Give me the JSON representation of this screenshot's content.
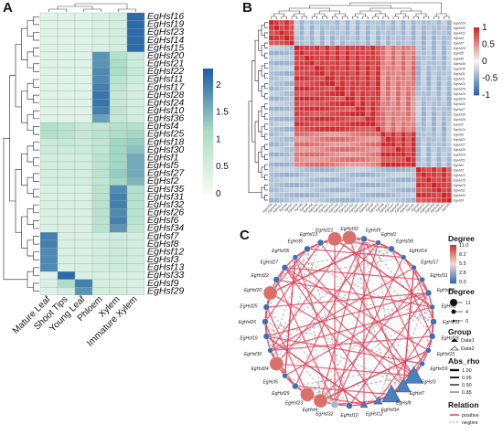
{
  "panels": {
    "a": "A",
    "b": "B",
    "c": "C"
  },
  "colors": {
    "low": "#f4fbf4",
    "mid": "#a9dcc6",
    "high": "#1f5fa8",
    "corr_neg": "#2c63a8",
    "corr_mid": "#f7f7f2",
    "corr_pos": "#cc2529",
    "positive": "#e23b54",
    "negative": "#9a9a9a"
  },
  "chart_data": [
    {
      "type": "heatmap",
      "panel": "A",
      "columns": [
        "Mature Leaf",
        "Shoot Tips",
        "Young Leaf",
        "Phloem",
        "Xylem",
        "Immature Xylem"
      ],
      "rows": [
        "EgHsf16",
        "EgHsf19",
        "EgHsf23",
        "EgHsf14",
        "EgHsf15",
        "EgHsf20",
        "EgHsf21",
        "EgHsf22",
        "EgHsf11",
        "EgHsf17",
        "EgHsf28",
        "EgHsf24",
        "EgHsf10",
        "EgHsf36",
        "EgHsf4",
        "EgHsf25",
        "EgHsf18",
        "EgHsf30",
        "EgHsf1",
        "EgHsf5",
        "EgHsf27",
        "EgHsf2",
        "EgHsf35",
        "EgHsf31",
        "EgHsf32",
        "EgHsf26",
        "EgHsf6",
        "EgHsf34",
        "EgHsf7",
        "EgHsf8",
        "EgHsf12",
        "EgHsf3",
        "EgHsf13",
        "EgHsf33",
        "EgHsf9",
        "EgHsf29"
      ],
      "values": [
        [
          0.3,
          0.3,
          0.3,
          0.4,
          0.5,
          2.2
        ],
        [
          0.3,
          0.3,
          0.3,
          0.4,
          0.5,
          2.2
        ],
        [
          0.3,
          0.3,
          0.3,
          0.4,
          0.5,
          2.2
        ],
        [
          0.3,
          0.3,
          0.3,
          0.4,
          0.5,
          2.2
        ],
        [
          0.3,
          0.3,
          0.3,
          0.4,
          0.5,
          2.2
        ],
        [
          0.3,
          0.3,
          0.3,
          1.8,
          1.0,
          0.6
        ],
        [
          0.3,
          0.3,
          0.3,
          1.8,
          1.1,
          0.6
        ],
        [
          0.3,
          0.3,
          0.3,
          1.9,
          1.1,
          0.7
        ],
        [
          0.3,
          0.3,
          0.3,
          1.9,
          0.9,
          0.6
        ],
        [
          0.3,
          0.3,
          0.3,
          2.0,
          0.8,
          0.5
        ],
        [
          0.3,
          0.3,
          0.3,
          2.1,
          0.7,
          0.5
        ],
        [
          0.3,
          0.3,
          0.3,
          2.1,
          0.7,
          0.5
        ],
        [
          0.3,
          0.3,
          0.3,
          2.0,
          0.8,
          0.5
        ],
        [
          0.3,
          0.3,
          0.3,
          1.7,
          0.7,
          0.5
        ],
        [
          1.0,
          0.9,
          0.7,
          0.8,
          1.0,
          1.0
        ],
        [
          1.0,
          0.9,
          0.7,
          0.9,
          1.1,
          1.2
        ],
        [
          0.6,
          0.7,
          0.6,
          0.8,
          1.2,
          1.3
        ],
        [
          0.6,
          0.6,
          0.6,
          0.8,
          1.2,
          1.4
        ],
        [
          0.5,
          0.5,
          0.5,
          0.9,
          1.2,
          1.6
        ],
        [
          0.5,
          0.5,
          0.5,
          0.9,
          1.2,
          1.6
        ],
        [
          0.5,
          0.5,
          0.5,
          0.9,
          1.3,
          1.6
        ],
        [
          0.5,
          0.5,
          0.5,
          0.8,
          1.2,
          1.5
        ],
        [
          0.4,
          0.4,
          0.4,
          0.9,
          1.9,
          1.0
        ],
        [
          0.4,
          0.4,
          0.4,
          0.9,
          2.0,
          1.0
        ],
        [
          0.4,
          0.4,
          0.4,
          0.9,
          2.0,
          0.9
        ],
        [
          0.4,
          0.4,
          0.4,
          0.9,
          1.9,
          0.9
        ],
        [
          0.4,
          0.4,
          0.4,
          0.9,
          2.0,
          0.9
        ],
        [
          0.4,
          0.4,
          0.4,
          0.9,
          1.8,
          0.8
        ],
        [
          2.0,
          0.4,
          0.4,
          0.5,
          0.6,
          0.5
        ],
        [
          2.0,
          0.4,
          0.4,
          0.5,
          0.6,
          0.5
        ],
        [
          1.9,
          0.4,
          0.4,
          0.5,
          0.6,
          0.5
        ],
        [
          1.9,
          0.4,
          0.4,
          0.5,
          0.6,
          0.5
        ],
        [
          1.9,
          0.4,
          0.4,
          0.5,
          0.6,
          0.5
        ],
        [
          0.3,
          2.2,
          0.4,
          0.4,
          0.4,
          0.4
        ],
        [
          0.4,
          1.1,
          2.0,
          0.5,
          0.5,
          0.4
        ],
        [
          0.3,
          0.5,
          1.8,
          0.5,
          0.5,
          0.4
        ]
      ],
      "color_range": [
        0,
        2.3
      ],
      "colorbar_ticks": [
        "2",
        "1.5",
        "1",
        "0.5",
        "0"
      ],
      "colorbar_tick_values": [
        2,
        1.5,
        1,
        0.5,
        0
      ]
    },
    {
      "type": "heatmap",
      "panel": "B",
      "kind": "correlation",
      "labels": [
        "EgHsf26",
        "EgHsf35",
        "EgHsf12",
        "EgHsf4",
        "EgHsf7",
        "EgHsf25",
        "EgHsf5",
        "EgHsf8",
        "EgHsf36",
        "EgHsf30",
        "EgHsf31",
        "EgHsf11",
        "EgHsf10",
        "EgHsf28",
        "EgHsf19",
        "EgHsf14",
        "EgHsf23",
        "EgHsf27",
        "EgHsf34",
        "EgHsf29",
        "EgHsf2",
        "EgHsf16",
        "EgHsf6",
        "EgHsf22",
        "EgHsf17",
        "EgHsf20",
        "EgHsf24",
        "EgHsf21",
        "EgHsf1",
        "EgHsf3",
        "EgHsf13",
        "EgHsf15",
        "EgHsf18",
        "EgHsf32",
        "EgHsf33",
        "EgHsf9"
      ],
      "clusters": [
        [
          0,
          4
        ],
        [
          5,
          21
        ],
        [
          22,
          28
        ],
        [
          29,
          35
        ]
      ],
      "within_cluster_r": 0.85,
      "between_cluster_r": -0.35,
      "color_range": [
        -1,
        1
      ],
      "colorbar_ticks": [
        "1",
        "0.5",
        "0",
        "-0.5",
        "-1"
      ],
      "colorbar_tick_values": [
        1,
        0.5,
        0,
        -0.5,
        -1
      ]
    },
    {
      "type": "network",
      "panel": "C",
      "nodes": [
        "EgHsf33",
        "EgHsf9",
        "EgHsf1",
        "EgHsf36",
        "EgHsf14",
        "EgHsf17",
        "EgHsf31",
        "EgHsf28",
        "EgHsf2",
        "EgHsf11",
        "EgHsf18",
        "EgHsf15",
        "EgHsf16",
        "EgHsf3",
        "EgHsf7",
        "EgHsf8",
        "EgHsf34",
        "EgHsf12",
        "EgHsf10",
        "EgHsf32",
        "EgHsf4",
        "EgHsf23",
        "EgHsf29",
        "EgHsf5",
        "EgHsf24",
        "EgHsf30",
        "EgHsf19",
        "EgHsf26",
        "EgHsf25",
        "EgHsf20",
        "EgHsf22",
        "EgHsf27",
        "EgHsf35",
        "EgHsf6",
        "EgHsf13",
        "EgHsf21"
      ],
      "node_shapes": [
        "circle",
        "circle",
        "circle",
        "circle",
        "circle",
        "circle",
        "circle",
        "circle",
        "circle",
        "circle",
        "circle",
        "circle",
        "circle",
        "triangle",
        "triangle",
        "triangle",
        "triangle",
        "triangle",
        "circle",
        "circle",
        "circle",
        "circle",
        "circle",
        "circle",
        "circle",
        "circle",
        "circle",
        "circle",
        "circle",
        "circle",
        "circle",
        "circle",
        "circle",
        "circle",
        "circle",
        "circle"
      ],
      "node_degree": [
        11,
        3,
        2,
        3,
        2,
        2,
        2,
        3,
        2,
        3,
        3,
        2,
        2,
        11,
        8,
        11,
        3,
        2,
        3,
        4,
        11,
        11,
        3,
        2,
        11,
        2,
        3,
        3,
        3,
        11,
        3,
        3,
        2,
        3,
        3,
        11
      ],
      "legend": {
        "degree_title": "Degree",
        "degree_colorbar_ticks": [
          "11.0",
          "8.2",
          "5.5",
          "2.8",
          "0.0"
        ],
        "degree_size_title": "Degree",
        "degree_size_ticks": [
          "11",
          "4",
          "0"
        ],
        "group_title": "Group",
        "groups": [
          "Data1",
          "Data2"
        ],
        "abs_rho_title": "Abs_rho",
        "abs_rho_ticks": [
          "1.00",
          "0.95",
          "0.90",
          "0.85"
        ],
        "relation_title": "Relation",
        "relations": [
          "positive",
          "negtive"
        ]
      }
    }
  ]
}
